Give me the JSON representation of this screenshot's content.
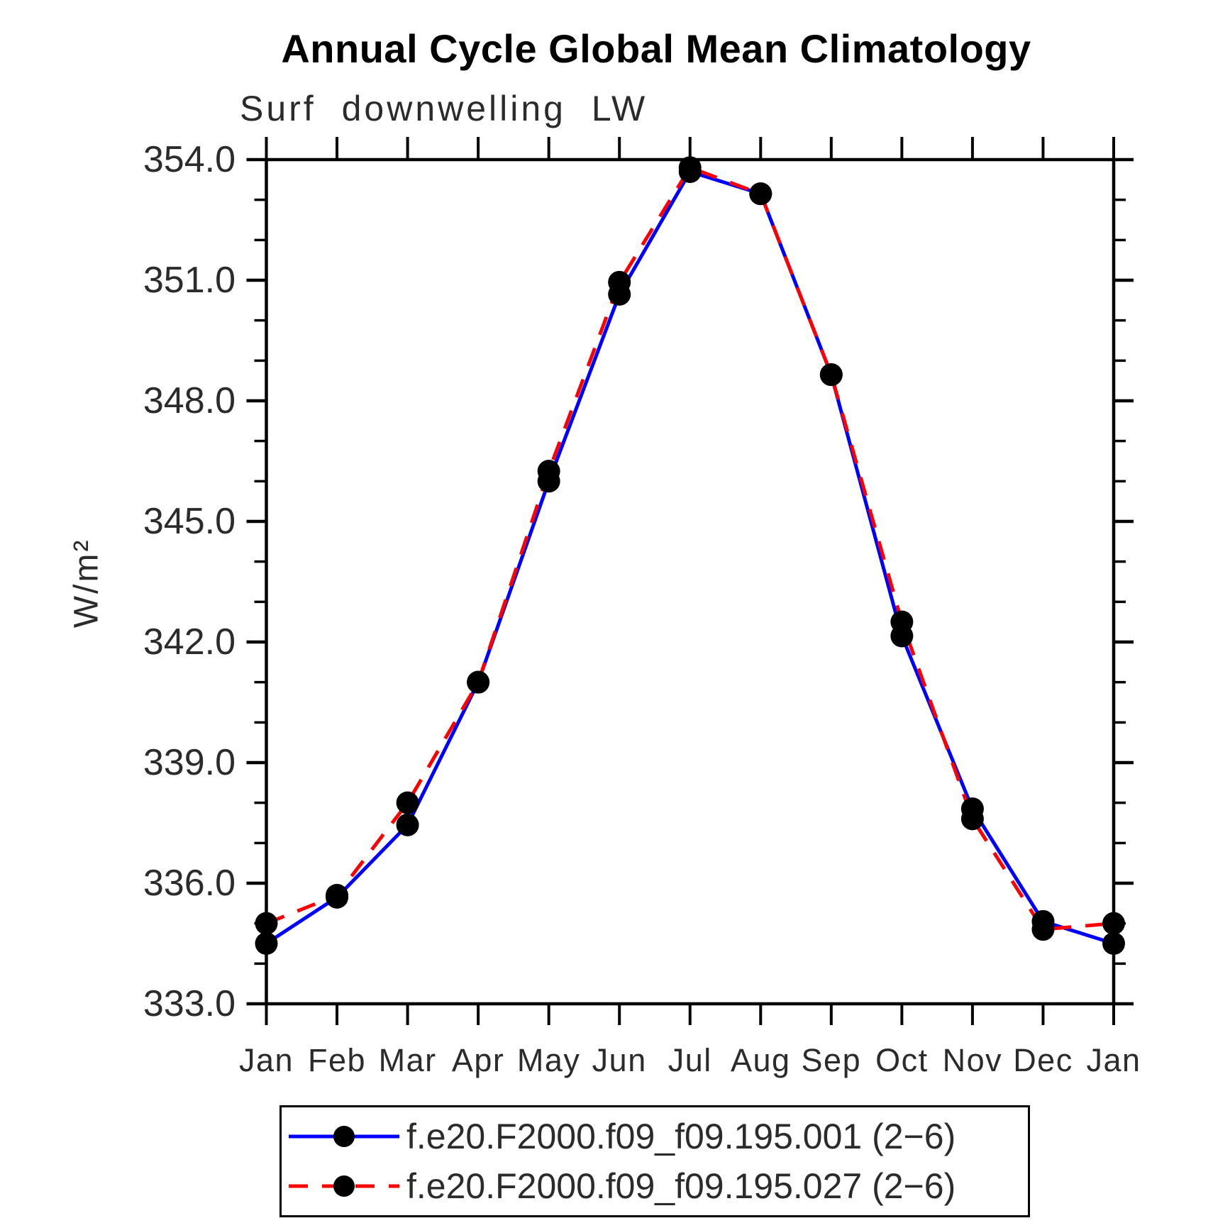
{
  "figure": {
    "background": "#ffffff",
    "axis_color": "#000000",
    "text_color": "#2b2b2b"
  },
  "chart_data": {
    "type": "line",
    "title": "Annual Cycle Global Mean Climatology",
    "subtitle": "Surf downwelling LW",
    "ylabel": "W/m²",
    "xlabel": "",
    "categories": [
      "Jan",
      "Feb",
      "Mar",
      "Apr",
      "May",
      "Jun",
      "Jul",
      "Aug",
      "Sep",
      "Oct",
      "Nov",
      "Dec",
      "Jan"
    ],
    "ylim": [
      333.0,
      354.0
    ],
    "ytick_major_interval": 3.0,
    "ytick_minor_interval": 1.0,
    "ytick_labels": [
      "333.0",
      "336.0",
      "339.0",
      "342.0",
      "345.0",
      "348.0",
      "351.0",
      "354.0"
    ],
    "grid": false,
    "legend_position": "bottom",
    "marker": "filled-circle",
    "marker_color": "#000000",
    "series": [
      {
        "name": "f.e20.F2000.f09_f09.195.001 (2−6)",
        "color": "#0000ff",
        "style": "solid",
        "values": [
          334.5,
          335.65,
          337.45,
          341.0,
          346.0,
          350.65,
          353.7,
          353.15,
          348.65,
          342.15,
          337.85,
          335.05,
          334.5
        ]
      },
      {
        "name": "f.e20.F2000.f09_f09.195.027 (2−6)",
        "color": "#ff0000",
        "style": "dashed",
        "values": [
          335.0,
          335.7,
          338.0,
          341.0,
          346.25,
          350.95,
          353.8,
          353.15,
          348.65,
          342.5,
          337.6,
          334.85,
          335.0
        ]
      }
    ]
  }
}
